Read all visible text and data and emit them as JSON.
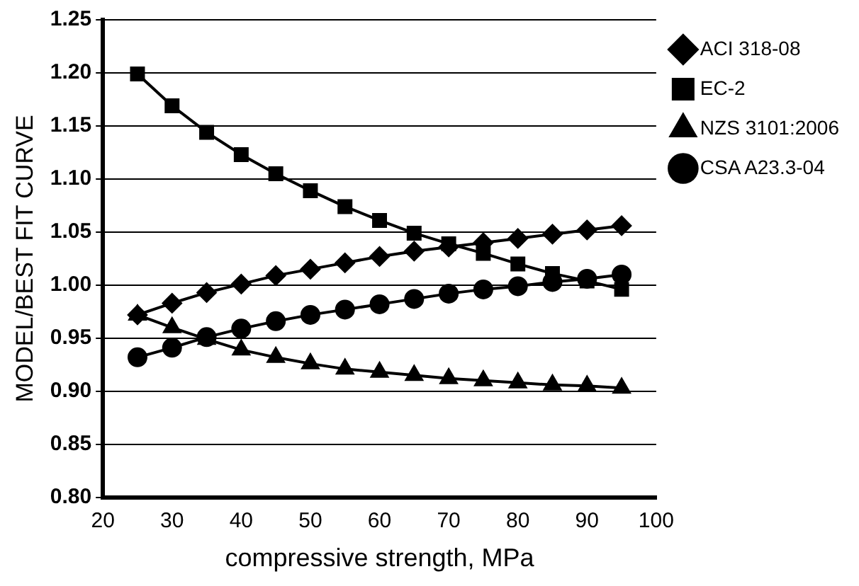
{
  "chart_data": {
    "type": "line",
    "xlabel": "compressive strength, MPa",
    "ylabel": "MODEL/BEST FIT CURVE",
    "x": [
      25,
      30,
      35,
      40,
      45,
      50,
      55,
      60,
      65,
      70,
      75,
      80,
      85,
      90,
      95
    ],
    "series": [
      {
        "name": "ACI 318-08",
        "color": "#000000",
        "marker": "diamond",
        "values": [
          0.972,
          0.983,
          0.993,
          1.001,
          1.009,
          1.015,
          1.021,
          1.027,
          1.032,
          1.036,
          1.04,
          1.044,
          1.048,
          1.052,
          1.056
        ]
      },
      {
        "name": "EC-2",
        "color": "#000000",
        "marker": "square",
        "values": [
          1.199,
          1.169,
          1.144,
          1.123,
          1.105,
          1.089,
          1.074,
          1.061,
          1.049,
          1.039,
          1.03,
          1.02,
          1.011,
          1.004,
          0.996
        ]
      },
      {
        "name": "NZS 3101:2006",
        "color": "#000000",
        "marker": "triangle",
        "values": [
          0.972,
          0.96,
          0.949,
          0.939,
          0.932,
          0.926,
          0.921,
          0.918,
          0.915,
          0.912,
          0.91,
          0.908,
          0.906,
          0.905,
          0.903
        ]
      },
      {
        "name": "CSA A23.3-04",
        "color": "#000000",
        "marker": "circle",
        "values": [
          0.932,
          0.941,
          0.951,
          0.959,
          0.966,
          0.972,
          0.977,
          0.982,
          0.987,
          0.992,
          0.996,
          0.999,
          1.003,
          1.006,
          1.01
        ]
      }
    ],
    "xlim": [
      20,
      100
    ],
    "xticks": [
      20,
      30,
      40,
      50,
      60,
      70,
      80,
      90,
      100
    ],
    "ylim": [
      0.8,
      1.25
    ],
    "yticks": [
      {
        "value": 0.8,
        "label": "0.80"
      },
      {
        "value": 0.85,
        "label": "0.85"
      },
      {
        "value": 0.9,
        "label": "0.90"
      },
      {
        "value": 0.95,
        "label": "0.95"
      },
      {
        "value": 1.0,
        "label": "1.00"
      },
      {
        "value": 1.05,
        "label": "1.05"
      },
      {
        "value": 1.1,
        "label": "1.10"
      },
      {
        "value": 1.15,
        "label": "1.15"
      },
      {
        "value": 1.2,
        "label": "1.20"
      },
      {
        "value": 1.25,
        "label": "1.25"
      }
    ],
    "grid": "y",
    "legend": "top right",
    "line_style": "solid"
  }
}
